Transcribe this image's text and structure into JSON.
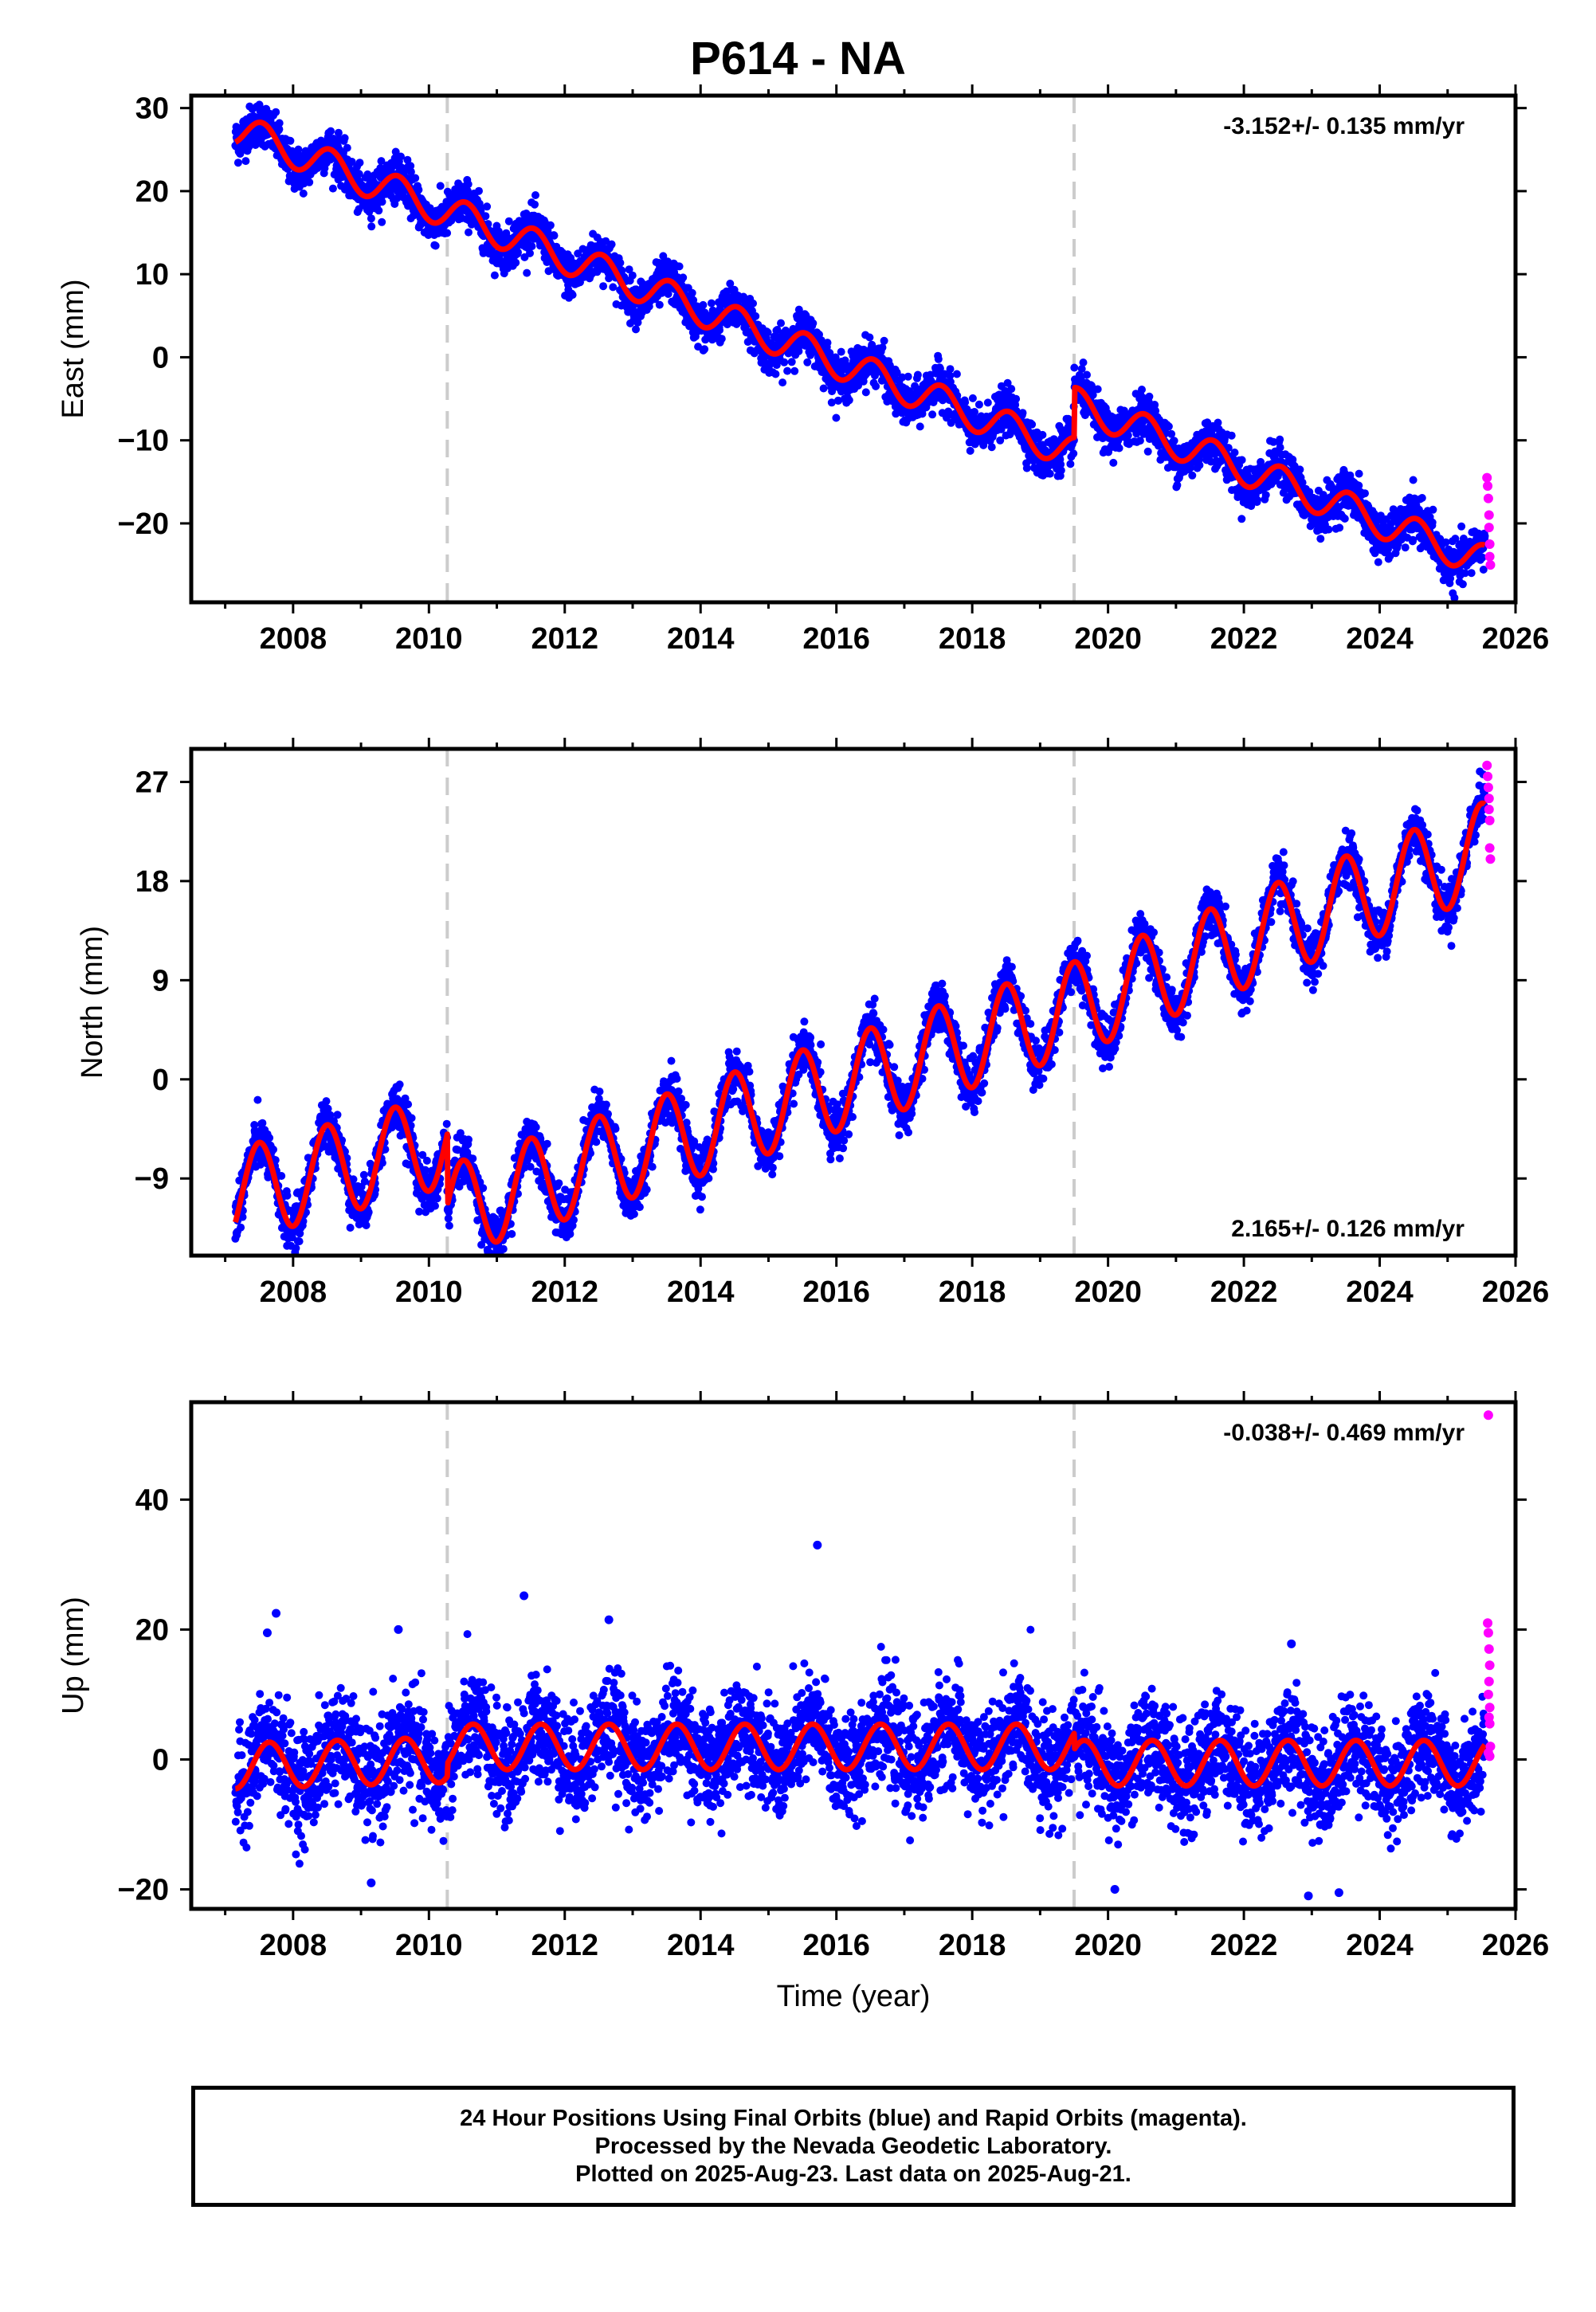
{
  "title": "P614 - NA",
  "colors": {
    "final": "#0000ff",
    "rapid": "#ff00ff",
    "model": "#ff0000",
    "offset_line": "#cccccc"
  },
  "offset_lines_x": [
    2010.27,
    2019.5
  ],
  "footer": {
    "line1": "24 Hour Positions Using Final Orbits (blue) and Rapid Orbits (magenta).",
    "line2": "Processed by the Nevada Geodetic Laboratory.",
    "line3": "Plotted on 2025-Aug-23. Last data on 2025-Aug-21."
  },
  "chart_data": [
    {
      "type": "scatter",
      "ylabel": "East (mm)",
      "xlabel": "",
      "rate": "-3.152+/- 0.135 mm/yr",
      "rate_position": "top-right",
      "xlim": [
        2006.5,
        2026.0
      ],
      "ylim": [
        -29.5,
        31.5
      ],
      "x_ticks": [
        2008,
        2010,
        2012,
        2014,
        2016,
        2018,
        2020,
        2022,
        2024,
        2026
      ],
      "y_ticks": [
        -20,
        -10,
        0,
        10,
        20,
        30
      ],
      "grid": false,
      "x_data_range": [
        2007.15,
        2025.55
      ],
      "series": [
        {
          "name": "Final Orbits",
          "style": "points",
          "color": "#0000ff",
          "trend": {
            "t0": 2007.15,
            "y0": 27.5,
            "segments": [
              {
                "from": 2007.15,
                "to": 2010.27,
                "slope": -3.2
              },
              {
                "from": 2010.27,
                "to": 2019.5,
                "slope": -3.15
              },
              {
                "from": 2019.5,
                "to": 2025.55,
                "slope": -3.15
              }
            ],
            "offsets": [
              {
                "at": 2019.5,
                "jump": 6.0
              }
            ],
            "annual_amplitude": 2.0,
            "annual_peak_phase": 0.55,
            "noise_sd": 1.3,
            "outliers": []
          }
        },
        {
          "name": "Model",
          "style": "line",
          "color": "#ff0000"
        },
        {
          "name": "Rapid Orbits",
          "style": "points",
          "color": "#ff00ff",
          "x": [
            2025.58,
            2025.59,
            2025.6,
            2025.61,
            2025.61,
            2025.62,
            2025.62,
            2025.63
          ],
          "y": [
            -14.5,
            -15.5,
            -17.0,
            -19.0,
            -20.5,
            -22.5,
            -24.0,
            -25.0
          ]
        }
      ]
    },
    {
      "type": "scatter",
      "ylabel": "North (mm)",
      "xlabel": "",
      "rate": "2.165+/- 0.126 mm/yr",
      "rate_position": "bottom-right",
      "xlim": [
        2006.5,
        2026.0
      ],
      "ylim": [
        -16,
        30
      ],
      "x_ticks": [
        2008,
        2010,
        2012,
        2014,
        2016,
        2018,
        2020,
        2022,
        2024,
        2026
      ],
      "y_ticks": [
        -9,
        0,
        9,
        18,
        27
      ],
      "grid": false,
      "x_data_range": [
        2007.15,
        2025.55
      ],
      "series": [
        {
          "name": "Final Orbits",
          "style": "points",
          "color": "#0000ff",
          "trend": {
            "t0": 2007.15,
            "y0": -10.5,
            "segments": [
              {
                "from": 2007.15,
                "to": 2010.27,
                "slope": 1.6
              },
              {
                "from": 2010.27,
                "to": 2019.5,
                "slope": 2.0
              },
              {
                "from": 2019.5,
                "to": 2025.55,
                "slope": 2.4
              }
            ],
            "offsets": [
              {
                "at": 2010.27,
                "jump": -6.5
              }
            ],
            "annual_amplitude": 4.2,
            "annual_peak_phase": 0.5,
            "noise_sd": 1.1,
            "outliers": []
          }
        },
        {
          "name": "Model",
          "style": "line",
          "color": "#ff0000"
        },
        {
          "name": "Rapid Orbits",
          "style": "points",
          "color": "#ff00ff",
          "x": [
            2025.58,
            2025.59,
            2025.6,
            2025.61,
            2025.61,
            2025.62,
            2025.62,
            2025.63
          ],
          "y": [
            28.5,
            27.5,
            26.5,
            25.5,
            24.5,
            23.5,
            21.0,
            20.0
          ]
        }
      ]
    },
    {
      "type": "scatter",
      "ylabel": "Up (mm)",
      "xlabel": "Time (year)",
      "rate": "-0.038+/- 0.469 mm/yr",
      "rate_position": "top-right",
      "xlim": [
        2006.5,
        2026.0
      ],
      "ylim": [
        -23,
        55
      ],
      "x_ticks": [
        2008,
        2010,
        2012,
        2014,
        2016,
        2018,
        2020,
        2022,
        2024,
        2026
      ],
      "y_ticks": [
        -20,
        0,
        20,
        40
      ],
      "grid": false,
      "x_data_range": [
        2007.15,
        2025.55
      ],
      "series": [
        {
          "name": "Final Orbits",
          "style": "points",
          "color": "#0000ff",
          "trend": {
            "t0": 2007.15,
            "y0": -1.0,
            "segments": [
              {
                "from": 2007.15,
                "to": 2010.27,
                "slope": 0.3
              },
              {
                "from": 2010.27,
                "to": 2019.5,
                "slope": 0.0
              },
              {
                "from": 2019.5,
                "to": 2025.55,
                "slope": 0.0
              }
            ],
            "offsets": [
              {
                "at": 2010.27,
                "jump": 2.0
              },
              {
                "at": 2019.5,
                "jump": -2.5
              }
            ],
            "annual_amplitude": 3.5,
            "annual_peak_phase": 0.65,
            "noise_sd": 4.0,
            "outliers": [
              [
                2007.75,
                22.5
              ],
              [
                2007.62,
                19.5
              ],
              [
                2009.55,
                20.0
              ],
              [
                2011.4,
                25.2
              ],
              [
                2012.65,
                21.5
              ],
              [
                2015.72,
                33.0
              ],
              [
                2009.15,
                -19.0
              ],
              [
                2020.1,
                -20.0
              ],
              [
                2022.95,
                -21.0
              ],
              [
                2023.4,
                -20.5
              ],
              [
                2022.7,
                17.8
              ]
            ]
          }
        },
        {
          "name": "Model",
          "style": "line",
          "color": "#ff0000"
        },
        {
          "name": "Rapid Orbits",
          "style": "points",
          "color": "#ff00ff",
          "x": [
            2025.6,
            2025.59,
            2025.6,
            2025.61,
            2025.62,
            2025.61,
            2025.6,
            2025.62,
            2025.61,
            2025.62,
            2025.63,
            2025.6,
            2025.62
          ],
          "y": [
            53.0,
            21.0,
            19.5,
            17.0,
            14.5,
            12.0,
            10.0,
            8.0,
            6.5,
            5.5,
            2.0,
            1.0,
            0.5
          ]
        }
      ]
    }
  ]
}
